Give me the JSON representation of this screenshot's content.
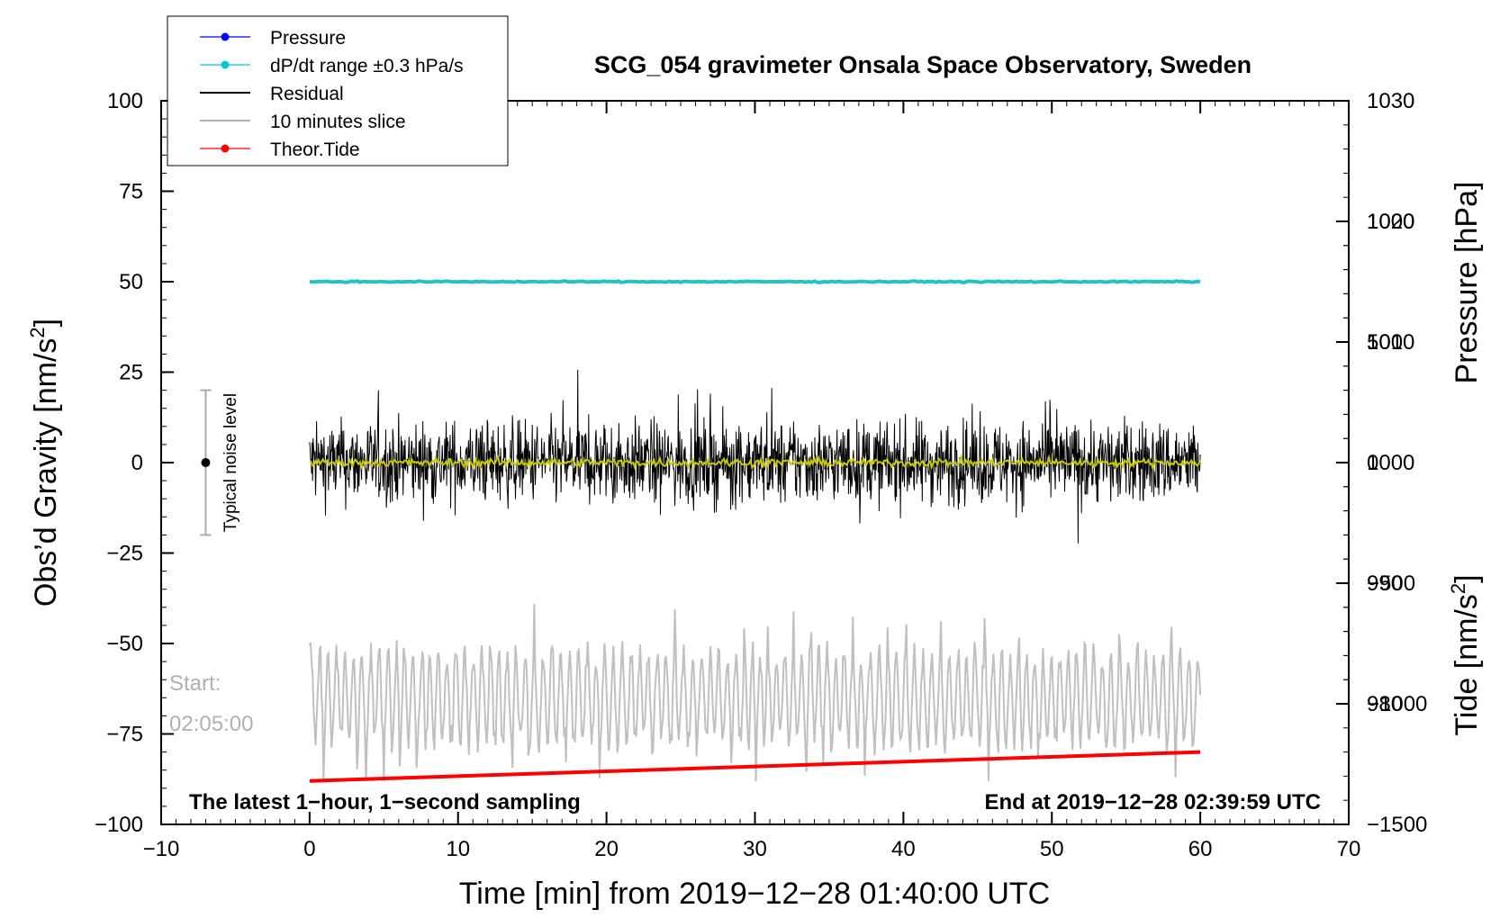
{
  "chart_data": {
    "type": "line",
    "title": "SCG_054 gravimeter Onsala Space Observatory, Sweden",
    "xlabel": "Time [min] from 2019−12−28 01:40:00 UTC",
    "ylabel_left": "Obs’d Gravity [nm/s",
    "ylabel_left_sup": "2",
    "ylabel_left_end": "]",
    "ylabel_right_top": "Pressure [hPa]",
    "ylabel_right_bottom": "Tide [nm/s",
    "ylabel_right_bottom_sup": "2",
    "ylabel_right_bottom_end": "]",
    "xlim": [
      -10,
      70
    ],
    "ylim_left": [
      -100,
      100
    ],
    "ylim_pressure": [
      970,
      1030
    ],
    "ylim_tide": [
      -1500,
      1500
    ],
    "x_ticks": [
      -10,
      0,
      10,
      20,
      30,
      40,
      50,
      60,
      70
    ],
    "x_tick_labels": [
      "−10",
      "0",
      "10",
      "20",
      "30",
      "40",
      "50",
      "60",
      "70"
    ],
    "y_left_ticks": [
      100,
      75,
      50,
      25,
      0,
      -25,
      -50,
      -75,
      -100
    ],
    "y_left_tick_labels": [
      "100",
      "75",
      "50",
      "25",
      "0",
      "−25",
      "−50",
      "−75",
      "−100"
    ],
    "y_pressure_ticks": [
      1030,
      1020,
      1010,
      1000,
      990,
      980
    ],
    "y_pressure_tick_labels": [
      "1030",
      "1020",
      "1010",
      "1000",
      "990",
      "980"
    ],
    "y_tide_ticks": [
      1000,
      500,
      0,
      -500,
      -1000,
      -1500
    ],
    "y_tide_tick_labels": [
      "1000",
      "500",
      "0",
      "−500",
      "−1000",
      "−1500"
    ],
    "legend_entries": [
      {
        "label": "Pressure",
        "color": "#0000ff",
        "marker": true
      },
      {
        "label": "dP/dt range ±0.3 hPa/s",
        "color": "#00c8c8",
        "marker": true
      },
      {
        "label": "Residual",
        "color": "#000000",
        "marker": false
      },
      {
        "label": "10 minutes slice",
        "color": "#b4b4b4",
        "marker": false
      },
      {
        "label": "Theor.Tide",
        "color": "#ff0000",
        "marker": true
      }
    ],
    "legend_position": "top-left",
    "series": [
      {
        "name": "dP/dt range",
        "color": "#22c3c3",
        "x_range": [
          0,
          60
        ],
        "value": 50
      },
      {
        "name": "Residual",
        "color": "#000000",
        "x_range": [
          0,
          60
        ],
        "typical_range": [
          -20,
          20
        ],
        "min": -27,
        "max": 30
      },
      {
        "name": "Residual smoothed",
        "color": "#c8c800",
        "x_range": [
          0,
          60
        ],
        "value": 0
      },
      {
        "name": "10 minutes slice",
        "color": "#c0c0c0",
        "x_range": [
          0,
          60
        ],
        "center": -65,
        "min": -88,
        "max": -37
      },
      {
        "name": "Theor.Tide",
        "color": "#ff0000",
        "x": [
          0,
          60
        ],
        "values": [
          -88,
          -80
        ]
      }
    ],
    "noise_bar": {
      "x": -7,
      "y": 0,
      "low": -20,
      "high": 20,
      "label": "Typical noise level"
    },
    "start_label_1": "Start:",
    "start_label_2": "02:05:00",
    "note_left": "The latest 1−hour, 1−second sampling",
    "note_right": "End at 2019−12−28 02:39:59 UTC"
  }
}
